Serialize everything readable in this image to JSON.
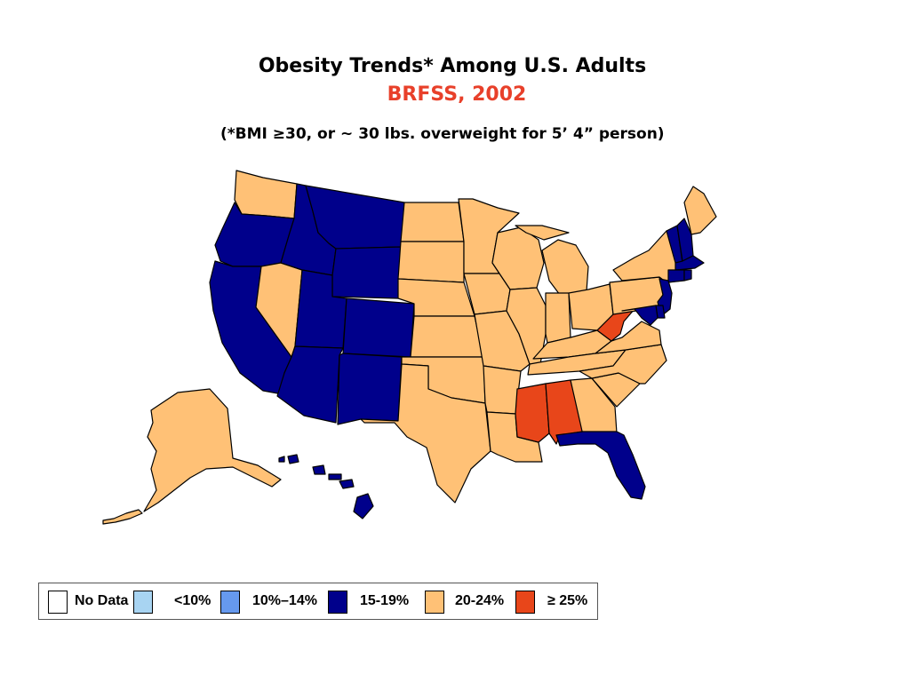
{
  "title": "Obesity Trends* Among U.S. Adults",
  "subtitle": "BRFSS, 2002",
  "note": "(*BMI ≥30, or ~ 30 lbs. overweight for 5’ 4” person)",
  "colors": {
    "no_data": "#ffffff",
    "lt10": "#a8d4f2",
    "10_14": "#6699ee",
    "15_19": "#00008b",
    "20_24": "#ffc176",
    "ge25": "#e8461a"
  },
  "legend": [
    {
      "key": "no_data",
      "label": "No Data"
    },
    {
      "key": "lt10",
      "label": "<10%"
    },
    {
      "key": "10_14",
      "label": "10%–14%"
    },
    {
      "key": "15_19",
      "label": "15-19%"
    },
    {
      "key": "20_24",
      "label": "20-24%"
    },
    {
      "key": "ge25",
      "label": "≥ 25%"
    }
  ],
  "state_categories": {
    "WA": "20_24",
    "OR": "15_19",
    "CA": "15_19",
    "NV": "20_24",
    "ID": "15_19",
    "MT": "15_19",
    "WY": "15_19",
    "UT": "15_19",
    "AZ": "15_19",
    "CO": "15_19",
    "NM": "15_19",
    "ND": "20_24",
    "SD": "20_24",
    "NE": "20_24",
    "KS": "20_24",
    "OK": "20_24",
    "TX": "20_24",
    "MN": "20_24",
    "IA": "20_24",
    "MO": "20_24",
    "AR": "20_24",
    "LA": "20_24",
    "WI": "20_24",
    "IL": "20_24",
    "MI": "20_24",
    "IN": "20_24",
    "OH": "20_24",
    "KY": "20_24",
    "TN": "20_24",
    "MS": "ge25",
    "AL": "ge25",
    "GA": "20_24",
    "FL": "15_19",
    "SC": "20_24",
    "NC": "20_24",
    "VA": "20_24",
    "WV": "ge25",
    "PA": "20_24",
    "NY": "20_24",
    "ME": "20_24",
    "VT": "15_19",
    "NH": "15_19",
    "MA": "15_19",
    "CT": "15_19",
    "RI": "15_19",
    "NJ": "15_19",
    "DE": "15_19",
    "MD": "15_19",
    "AK": "20_24",
    "HI": "15_19"
  }
}
